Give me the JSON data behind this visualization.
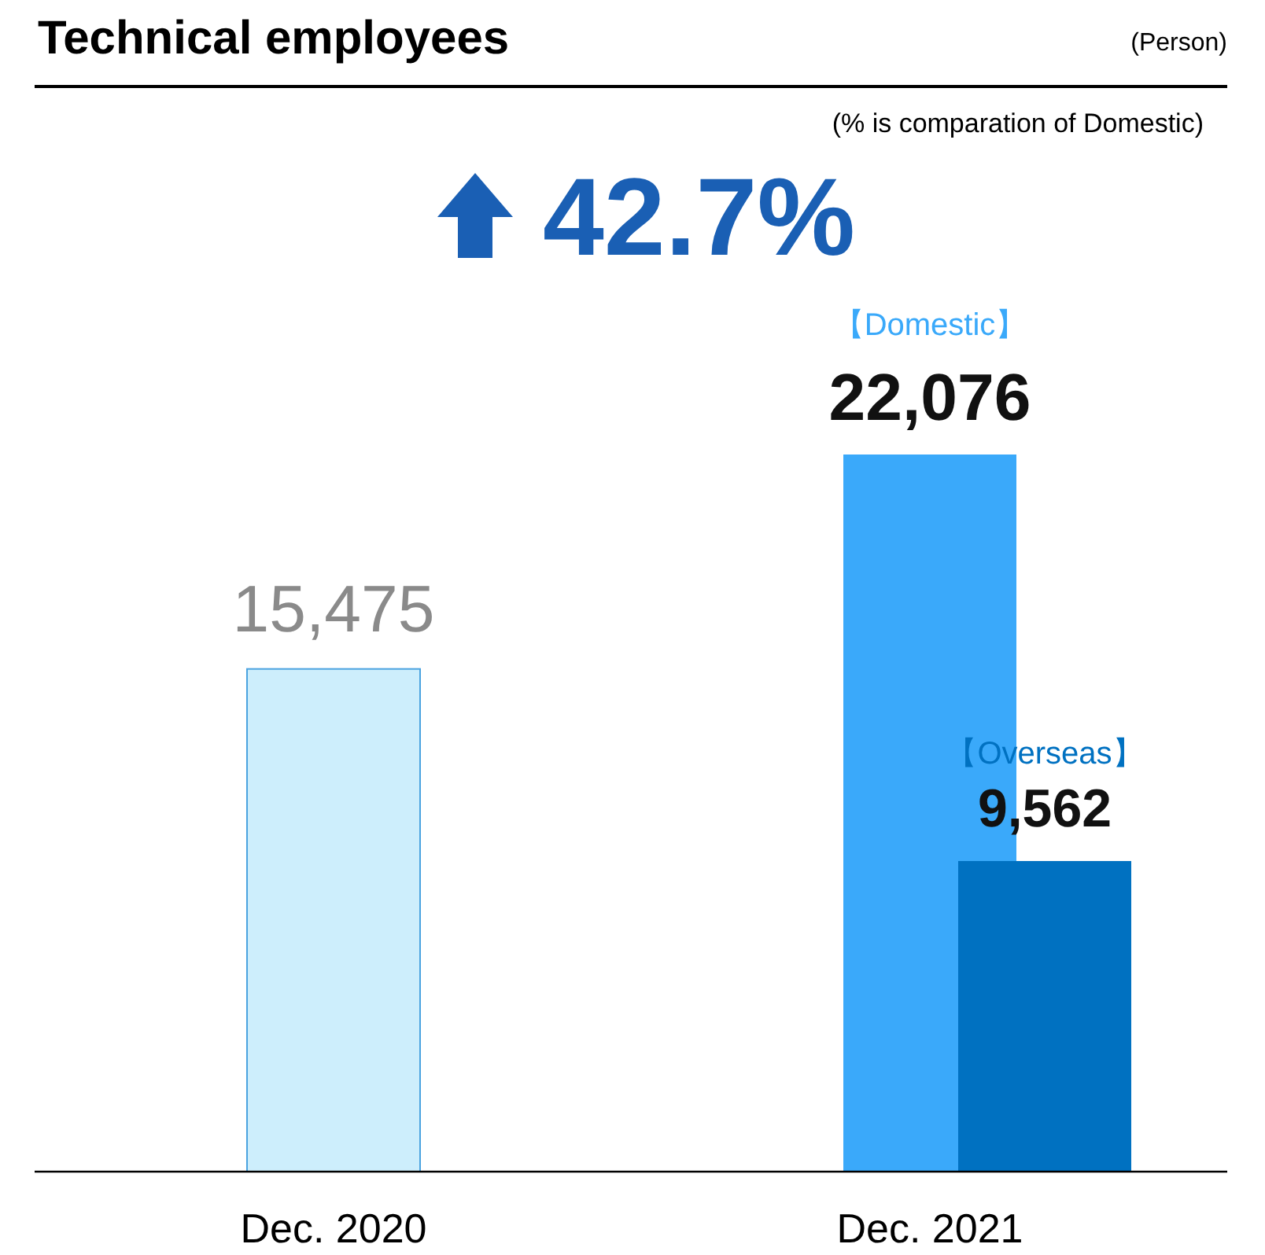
{
  "chart_data": {
    "type": "bar",
    "title": "Technical employees",
    "categories": [
      "Dec. 2020",
      "Dec. 2021"
    ],
    "series": [
      {
        "name": "【Domestic】",
        "values": [
          15475,
          22076
        ],
        "colors": [
          "#cdeefc",
          "#3aa9fa"
        ],
        "value_labels": [
          "15,475",
          "22,076"
        ]
      },
      {
        "name": "【Overseas】",
        "values": [
          null,
          9562
        ],
        "color": "#0071c1",
        "value_labels": [
          null,
          "9,562"
        ]
      }
    ],
    "annotations": [
      "(Person)",
      "(% is comparation of Domestic)",
      "42.7%"
    ]
  }
}
